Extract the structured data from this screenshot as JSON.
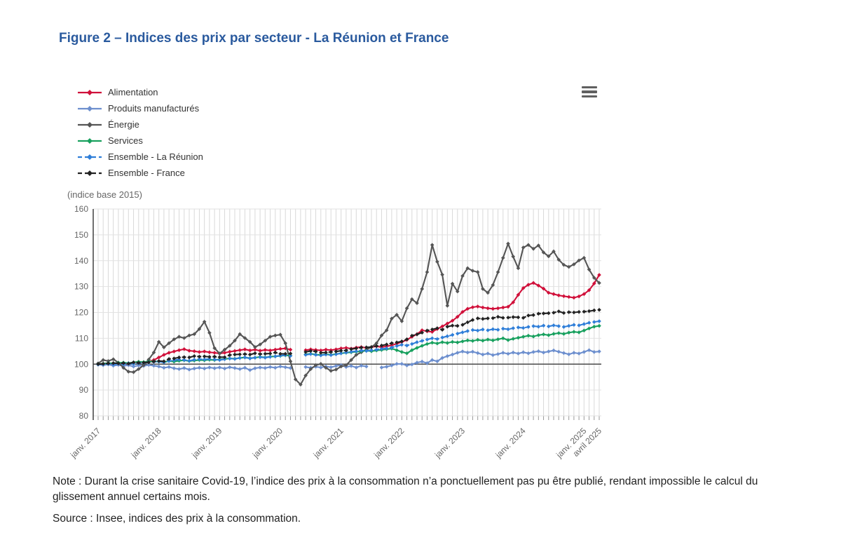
{
  "figure_title": "Figure 2 – Indices des prix par secteur - La Réunion et France",
  "unit_label": "(indice base 2015)",
  "note_text": "Note : Durant la crise sanitaire Covid-19, l’indice des prix à la consommation n’a ponctuellement pas pu être publié, rendant impossible le calcul du glissement annuel certains mois.",
  "source_text": "Source : Insee, indices des prix à la consommation.",
  "export_menu_icon": "hamburger-icon",
  "colors": {
    "title": "#2a5a9e",
    "axis_text": "#666666",
    "grid_minor": "#d9d9d9",
    "grid_major": "#e2e2e2",
    "baseline_100": "#4a4a4a",
    "axis_line": "#333333"
  },
  "chart_data": {
    "type": "line",
    "title": "Indices des prix par secteur - La Réunion et France",
    "unit": "(indice base 2015)",
    "x_start": "janv. 2017",
    "x_end": "avril 2025",
    "months_count": 100,
    "ylim": [
      80,
      160
    ],
    "y_ticks": [
      80,
      90,
      100,
      110,
      120,
      130,
      140,
      150,
      160
    ],
    "baseline": 100,
    "grid": true,
    "legend_position": "top-left",
    "x_tick_indices": [
      0,
      12,
      24,
      36,
      48,
      60,
      72,
      84,
      96,
      99
    ],
    "x_tick_labels": [
      "janv. 2017",
      "janv. 2018",
      "janv. 2019",
      "janv. 2020",
      "janv. 2021",
      "janv. 2022",
      "janv. 2023",
      "janv. 2024",
      "janv. 2025",
      "avril 2025"
    ],
    "gap_note": "null values = months not published during Covid-19",
    "series": [
      {
        "name": "Alimentation",
        "color": "#d0103a",
        "dash": null,
        "values": [
          100.0,
          100.2,
          100.4,
          100.1,
          100.3,
          100.5,
          100.2,
          100.6,
          100.9,
          100.7,
          101.0,
          101.6,
          102.6,
          103.6,
          104.4,
          104.9,
          105.4,
          105.8,
          105.2,
          105.0,
          104.7,
          104.9,
          104.6,
          104.4,
          104.1,
          104.4,
          104.8,
          105.1,
          105.4,
          105.7,
          105.3,
          105.6,
          105.2,
          105.5,
          105.3,
          105.6,
          105.9,
          106.1,
          105.6,
          null,
          null,
          105.4,
          105.7,
          105.5,
          105.3,
          105.6,
          105.4,
          105.7,
          106.1,
          106.3,
          106.0,
          106.4,
          106.6,
          106.3,
          106.6,
          106.9,
          106.6,
          106.9,
          107.3,
          107.9,
          108.6,
          109.4,
          110.6,
          111.6,
          113.1,
          112.7,
          112.5,
          113.6,
          114.6,
          115.7,
          116.8,
          118.3,
          120.2,
          121.4,
          122.0,
          122.3,
          121.9,
          121.6,
          121.4,
          121.6,
          121.9,
          122.2,
          123.9,
          126.8,
          129.4,
          130.7,
          131.4,
          130.4,
          129.2,
          127.6,
          127.1,
          126.6,
          126.3,
          126.0,
          125.7,
          126.2,
          127.1,
          128.6,
          131.2,
          134.5
        ]
      },
      {
        "name": "Produits manufacturés",
        "color": "#6d8fce",
        "dash": null,
        "values": [
          100.0,
          99.6,
          99.9,
          99.4,
          99.7,
          99.3,
          99.6,
          99.1,
          99.5,
          99.3,
          99.7,
          99.4,
          99.1,
          98.6,
          98.9,
          98.4,
          98.1,
          98.5,
          97.9,
          98.3,
          98.6,
          98.3,
          98.7,
          98.4,
          98.7,
          98.3,
          98.8,
          98.5,
          98.1,
          98.6,
          97.7,
          98.4,
          98.7,
          98.5,
          98.9,
          98.6,
          99.1,
          98.8,
          98.5,
          null,
          null,
          98.9,
          98.6,
          99.0,
          98.7,
          99.1,
          98.8,
          99.3,
          99.6,
          98.9,
          99.3,
          98.7,
          99.4,
          99.1,
          null,
          null,
          98.7,
          99.0,
          99.5,
          100.1,
          100.1,
          99.5,
          99.9,
          100.6,
          101.0,
          100.4,
          101.6,
          101.1,
          102.4,
          103.1,
          103.7,
          104.4,
          104.9,
          104.5,
          104.8,
          104.3,
          103.7,
          104.1,
          103.5,
          103.9,
          104.4,
          104.0,
          104.5,
          104.1,
          104.6,
          104.2,
          104.7,
          105.0,
          104.5,
          104.9,
          105.3,
          104.8,
          104.3,
          103.8,
          104.4,
          104.1,
          104.7,
          105.4,
          104.7,
          104.9
        ]
      },
      {
        "name": "Énergie",
        "color": "#555555",
        "dash": null,
        "values": [
          100.3,
          101.6,
          101.2,
          101.9,
          100.6,
          98.6,
          97.1,
          96.9,
          98.1,
          99.6,
          101.8,
          104.5,
          108.6,
          106.5,
          108.1,
          109.6,
          110.6,
          110.1,
          111.1,
          111.6,
          113.6,
          116.4,
          112.1,
          106.2,
          104.1,
          105.6,
          107.1,
          109.1,
          111.6,
          110.1,
          108.6,
          106.6,
          107.6,
          109.1,
          110.6,
          111.1,
          111.4,
          108.1,
          101.1,
          94.1,
          92.1,
          95.6,
          98.1,
          99.6,
          100.1,
          98.6,
          97.4,
          97.9,
          99.1,
          99.6,
          101.6,
          103.6,
          104.6,
          105.6,
          106.6,
          108.1,
          111.1,
          113.1,
          117.6,
          119.1,
          116.6,
          121.6,
          125.1,
          123.6,
          129.1,
          135.6,
          146.1,
          139.6,
          134.6,
          122.6,
          131.1,
          128.1,
          134.1,
          137.1,
          136.1,
          135.6,
          129.1,
          127.6,
          130.6,
          135.6,
          141.1,
          146.6,
          141.6,
          137.1,
          145.1,
          146.1,
          144.6,
          145.9,
          143.2,
          141.7,
          143.6,
          140.4,
          138.4,
          137.6,
          138.6,
          140.1,
          141.1,
          136.6,
          133.4,
          131.4
        ]
      },
      {
        "name": "Services",
        "color": "#18a05e",
        "dash": null,
        "values": [
          100.0,
          100.2,
          100.4,
          100.3,
          100.5,
          100.6,
          100.4,
          100.7,
          100.9,
          100.8,
          101.0,
          101.1,
          101.0,
          100.8,
          101.2,
          101.0,
          101.3,
          101.5,
          101.2,
          101.4,
          101.6,
          101.5,
          101.7,
          101.6,
          101.8,
          102.0,
          102.2,
          102.1,
          102.4,
          102.6,
          102.3,
          102.5,
          102.8,
          102.6,
          102.9,
          103.0,
          103.2,
          103.4,
          103.3,
          null,
          null,
          103.8,
          104.0,
          103.7,
          103.5,
          103.8,
          103.6,
          103.9,
          104.2,
          104.4,
          104.6,
          104.8,
          105.0,
          105.2,
          105.0,
          105.3,
          105.5,
          105.8,
          106.0,
          105.4,
          104.7,
          104.2,
          105.4,
          106.3,
          107.1,
          107.8,
          108.3,
          108.0,
          108.5,
          108.2,
          108.6,
          108.4,
          108.8,
          109.2,
          109.0,
          109.4,
          109.1,
          109.5,
          109.2,
          109.6,
          110.0,
          109.3,
          109.8,
          110.2,
          110.6,
          111.0,
          110.7,
          111.2,
          111.5,
          111.2,
          111.7,
          112.0,
          111.7,
          112.2,
          112.5,
          112.3,
          113.0,
          113.8,
          114.5,
          114.8
        ]
      },
      {
        "name": "Ensemble - La Réunion",
        "color": "#2f7ed8",
        "dash": "7,4",
        "values": [
          99.8,
          100.0,
          100.1,
          99.9,
          100.2,
          100.0,
          100.3,
          100.1,
          100.4,
          100.5,
          100.7,
          100.9,
          101.0,
          100.7,
          101.2,
          101.5,
          101.8,
          101.6,
          101.3,
          101.7,
          101.9,
          101.8,
          102.0,
          101.8,
          101.6,
          101.9,
          102.2,
          102.0,
          102.4,
          102.6,
          102.2,
          102.5,
          102.7,
          102.5,
          102.8,
          103.0,
          103.3,
          103.5,
          103.2,
          null,
          null,
          103.6,
          103.9,
          103.6,
          103.4,
          103.7,
          103.5,
          103.8,
          104.2,
          104.5,
          104.8,
          105.0,
          105.3,
          105.1,
          105.4,
          105.6,
          105.9,
          106.1,
          106.4,
          107.0,
          107.5,
          107.2,
          107.8,
          108.5,
          109.0,
          109.5,
          110.0,
          109.7,
          110.3,
          110.8,
          111.3,
          111.8,
          112.3,
          112.8,
          113.2,
          113.0,
          113.4,
          113.1,
          113.5,
          113.3,
          113.7,
          113.5,
          113.9,
          114.2,
          114.0,
          114.4,
          114.7,
          114.5,
          114.9,
          114.6,
          115.0,
          114.7,
          114.4,
          114.8,
          115.2,
          115.0,
          115.5,
          116.0,
          116.3,
          116.6
        ]
      },
      {
        "name": "Ensemble - France",
        "color": "#222222",
        "dash": "6,5",
        "values": [
          100.0,
          100.1,
          100.3,
          100.4,
          100.3,
          100.4,
          100.2,
          100.7,
          100.5,
          100.6,
          100.7,
          101.0,
          101.2,
          101.1,
          102.0,
          102.2,
          102.6,
          102.7,
          102.6,
          103.1,
          102.9,
          103.0,
          102.8,
          102.9,
          102.7,
          102.7,
          103.5,
          103.7,
          103.8,
          103.9,
          103.7,
          104.2,
          103.9,
          104.0,
          104.1,
          104.5,
          104.0,
          104.0,
          104.1,
          null,
          null,
          104.7,
          105.1,
          104.9,
          104.4,
          104.5,
          104.7,
          104.9,
          105.2,
          105.3,
          105.8,
          106.1,
          106.4,
          106.5,
          106.6,
          107.0,
          107.2,
          107.6,
          108.1,
          108.4,
          108.8,
          109.6,
          111.0,
          111.5,
          112.2,
          113.0,
          113.4,
          113.9,
          113.3,
          114.5,
          114.9,
          114.8,
          115.2,
          116.2,
          117.1,
          117.7,
          117.5,
          117.7,
          117.8,
          118.3,
          117.9,
          118.0,
          118.2,
          118.1,
          117.9,
          118.8,
          119.0,
          119.5,
          119.6,
          119.7,
          119.9,
          120.4,
          119.8,
          120.1,
          120.0,
          120.2,
          120.3,
          120.5,
          120.8,
          121.0
        ]
      }
    ]
  }
}
